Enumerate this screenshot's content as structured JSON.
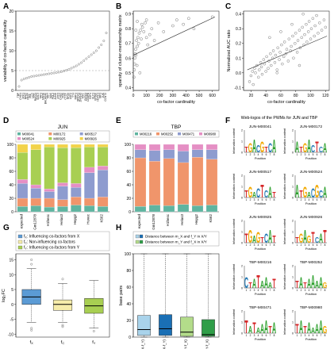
{
  "panels": {
    "A": "A",
    "B": "B",
    "C": "C",
    "D": "D",
    "E": "E",
    "F": "F",
    "G": "G",
    "H": "H"
  },
  "chart_data": [
    {
      "id": "A",
      "type": "scatter",
      "ylabel": "variability of co-factor cardinality",
      "ylim": [
        0,
        20
      ],
      "yticks": [
        0,
        5,
        10,
        15,
        20
      ],
      "threshold": 5,
      "point_labels": [
        "TBP",
        "CHD1",
        "MXI1",
        "NFE2",
        "REST",
        "PML",
        "MAZ",
        "RAD21",
        "SMC3",
        "TAF1",
        "SIN3A",
        "BHLHE40",
        "TAF7",
        "MAX",
        "POL2",
        "JUND",
        "ATF3",
        "CHD2",
        "FOS",
        "CTCF",
        "RFX5",
        "USF2",
        "YY1",
        "NRF1",
        "BRCA1",
        "ZNF143",
        "MYC",
        "GATA1",
        "CEBPB",
        "E2F4",
        "ELF1",
        "EP300",
        "HCFC1",
        "IRF1",
        "JUN",
        "CCNT2"
      ],
      "values": [
        1.0,
        2.6,
        2.9,
        3.1,
        3.3,
        3.5,
        3.6,
        3.7,
        3.8,
        3.9,
        4.0,
        4.1,
        4.2,
        4.3,
        4.4,
        4.5,
        4.6,
        4.7,
        4.9,
        5.1,
        5.3,
        5.6,
        5.9,
        6.2,
        6.6,
        7.0,
        7.5,
        8.0,
        8.5,
        9.0,
        9.5,
        10.0,
        10.8,
        11.5,
        12.5,
        14.5
      ]
    },
    {
      "id": "B",
      "type": "scatter",
      "xlabel": "co-factor cardinality",
      "ylabel": "sparsity of cluster-membership matrix",
      "xlim": [
        0,
        650
      ],
      "ylim": [
        0.38,
        0.92
      ],
      "xticks": [
        0,
        100,
        200,
        300,
        400,
        500,
        600
      ],
      "yticks": [
        0.4,
        0.5,
        0.6,
        0.7,
        0.8,
        0.9
      ],
      "points": [
        [
          5,
          0.47
        ],
        [
          8,
          0.52
        ],
        [
          10,
          0.56
        ],
        [
          12,
          0.6
        ],
        [
          15,
          0.63
        ],
        [
          18,
          0.66
        ],
        [
          20,
          0.62
        ],
        [
          25,
          0.72
        ],
        [
          28,
          0.55
        ],
        [
          30,
          0.68
        ],
        [
          35,
          0.74
        ],
        [
          40,
          0.7
        ],
        [
          45,
          0.77
        ],
        [
          50,
          0.5
        ],
        [
          55,
          0.79
        ],
        [
          60,
          0.73
        ],
        [
          70,
          0.81
        ],
        [
          80,
          0.78
        ],
        [
          90,
          0.84
        ],
        [
          100,
          0.74
        ],
        [
          110,
          0.69
        ],
        [
          125,
          0.76
        ],
        [
          140,
          0.8
        ],
        [
          160,
          0.72
        ],
        [
          190,
          0.84
        ],
        [
          230,
          0.78
        ],
        [
          300,
          0.82
        ],
        [
          330,
          0.86
        ],
        [
          380,
          0.83
        ],
        [
          420,
          0.87
        ],
        [
          460,
          0.8
        ],
        [
          600,
          0.88
        ],
        [
          30,
          0.85
        ],
        [
          20,
          0.79
        ],
        [
          65,
          0.83
        ],
        [
          100,
          0.86
        ]
      ],
      "trend": [
        [
          0,
          0.62
        ],
        [
          620,
          0.88
        ]
      ]
    },
    {
      "id": "C",
      "type": "scatter",
      "xlabel": "co-factor cardinality",
      "ylabel": "Normalized AUC ratio",
      "xlim": [
        10,
        125
      ],
      "ylim": [
        -0.12,
        0.42
      ],
      "xticks": [
        20,
        40,
        60,
        80,
        100,
        120
      ],
      "yticks": [
        -0.1,
        0.0,
        0.1,
        0.2,
        0.3,
        0.4
      ],
      "points": [
        [
          18,
          -0.06
        ],
        [
          20,
          -0.02
        ],
        [
          22,
          0.01
        ],
        [
          23,
          -0.08
        ],
        [
          25,
          0.03
        ],
        [
          26,
          0.0
        ],
        [
          28,
          0.05
        ],
        [
          30,
          -0.03
        ],
        [
          31,
          0.02
        ],
        [
          33,
          0.07
        ],
        [
          34,
          0.04
        ],
        [
          35,
          -0.01
        ],
        [
          37,
          0.09
        ],
        [
          38,
          0.06
        ],
        [
          40,
          0.01
        ],
        [
          41,
          0.11
        ],
        [
          43,
          0.03
        ],
        [
          44,
          0.08
        ],
        [
          46,
          0.13
        ],
        [
          47,
          0.05
        ],
        [
          49,
          0.1
        ],
        [
          50,
          0.15
        ],
        [
          52,
          0.07
        ],
        [
          53,
          0.12
        ],
        [
          55,
          0.02
        ],
        [
          56,
          0.17
        ],
        [
          58,
          0.09
        ],
        [
          59,
          0.14
        ],
        [
          61,
          0.19
        ],
        [
          62,
          0.06
        ],
        [
          64,
          0.11
        ],
        [
          65,
          0.21
        ],
        [
          67,
          0.13
        ],
        [
          68,
          0.16
        ],
        [
          70,
          0.08
        ],
        [
          71,
          0.23
        ],
        [
          73,
          0.15
        ],
        [
          74,
          0.18
        ],
        [
          76,
          0.25
        ],
        [
          77,
          0.1
        ],
        [
          79,
          0.2
        ],
        [
          80,
          0.27
        ],
        [
          82,
          0.14
        ],
        [
          83,
          0.22
        ],
        [
          85,
          0.29
        ],
        [
          86,
          0.17
        ],
        [
          88,
          0.24
        ],
        [
          89,
          0.31
        ],
        [
          91,
          0.19
        ],
        [
          92,
          0.26
        ],
        [
          94,
          0.33
        ],
        [
          95,
          0.21
        ],
        [
          97,
          0.28
        ],
        [
          98,
          0.35
        ],
        [
          100,
          0.23
        ],
        [
          101,
          0.3
        ],
        [
          103,
          0.37
        ],
        [
          105,
          0.25
        ],
        [
          106,
          0.32
        ],
        [
          108,
          0.39
        ],
        [
          110,
          0.27
        ],
        [
          112,
          0.34
        ],
        [
          115,
          0.29
        ],
        [
          118,
          0.36
        ],
        [
          120,
          0.31
        ],
        [
          60,
          0.28
        ],
        [
          45,
          0.24
        ],
        [
          90,
          0.4
        ],
        [
          75,
          0.33
        ],
        [
          55,
          0.0
        ],
        [
          85,
          0.05
        ]
      ],
      "trend": [
        [
          15,
          0.02
        ],
        [
          122,
          0.25
        ]
      ]
    },
    {
      "id": "D",
      "type": "bar",
      "title": "JUN",
      "stacked": true,
      "categories": [
        "expected",
        "Gm12878",
        "H1hesc",
        "Helas3",
        "Hepg2",
        "Huvec",
        "K562"
      ],
      "ylim": [
        0,
        100
      ],
      "yticks": [
        0,
        20,
        40,
        60,
        80,
        100
      ],
      "series": [
        {
          "name": "M00041",
          "color": "#5fb4a0",
          "values": [
            8,
            9,
            7,
            8,
            10,
            9,
            8
          ]
        },
        {
          "name": "M00172",
          "color": "#f0956b",
          "values": [
            12,
            11,
            13,
            10,
            12,
            11,
            14
          ]
        },
        {
          "name": "M00517",
          "color": "#8e9ccf",
          "values": [
            22,
            15,
            10,
            20,
            14,
            38,
            40
          ]
        },
        {
          "name": "M00524",
          "color": "#e58fc4",
          "values": [
            6,
            5,
            4,
            5,
            6,
            8,
            6
          ]
        },
        {
          "name": "M00925",
          "color": "#a8cf52",
          "values": [
            40,
            52,
            62,
            52,
            53,
            30,
            28
          ]
        },
        {
          "name": "M00926",
          "color": "#f2d34a",
          "values": [
            12,
            8,
            4,
            5,
            5,
            4,
            4
          ]
        }
      ]
    },
    {
      "id": "E",
      "type": "bar",
      "title": "TBP",
      "stacked": true,
      "categories": [
        "expected",
        "Gm12878",
        "H1hesc",
        "Helas3",
        "Hepg2",
        "K562"
      ],
      "ylim": [
        0,
        100
      ],
      "yticks": [
        0,
        20,
        40,
        60,
        80,
        100
      ],
      "series": [
        {
          "name": "M00216",
          "color": "#5fb4a0",
          "values": [
            8,
            10,
            9,
            11,
            9,
            10
          ]
        },
        {
          "name": "M00252",
          "color": "#f0956b",
          "values": [
            72,
            65,
            70,
            62,
            72,
            68
          ]
        },
        {
          "name": "M00471",
          "color": "#8e9ccf",
          "values": [
            12,
            16,
            13,
            17,
            11,
            14
          ]
        },
        {
          "name": "M00980",
          "color": "#e58fc4",
          "values": [
            8,
            9,
            8,
            10,
            8,
            8
          ]
        }
      ]
    },
    {
      "id": "G",
      "type": "box",
      "ylabel": "log₂FC",
      "ylim": [
        -11,
        17
      ],
      "yticks": [
        -10,
        -5,
        0,
        5,
        10,
        15
      ],
      "legend": [
        {
          "sym": "f",
          "sub": "X",
          "text": ": Influencing co-factors from X",
          "color": "#5b9bd5"
        },
        {
          "sym": "f",
          "sub": "C",
          "text": ": Non-influencing co-factors",
          "color": "#f6ecaa"
        },
        {
          "sym": "f",
          "sub": "Y",
          "text": ": Influencing co-factors from Y",
          "color": "#a8cf52"
        }
      ],
      "categories": [
        "f_X",
        "f_C",
        "f_Y"
      ],
      "boxes": [
        {
          "color": "#5b9bd5",
          "min": -6,
          "q1": 0,
          "median": 2.5,
          "q3": 5,
          "max": 12,
          "outliers": [
            -8,
            -8.7,
            13.5,
            15
          ]
        },
        {
          "color": "#f6ecaa",
          "min": -6,
          "q1": -2,
          "median": 0,
          "q3": 1.5,
          "max": 7,
          "outliers": [
            -7,
            -7.5,
            8.5
          ]
        },
        {
          "color": "#a8cf52",
          "min": -8,
          "q1": -3,
          "median": -0.5,
          "q3": 2,
          "max": 8,
          "outliers": [
            -9
          ]
        }
      ]
    },
    {
      "id": "H",
      "type": "box",
      "ylabel": "base pairs",
      "ylim": [
        0,
        100
      ],
      "yticks": [
        0,
        20,
        40,
        60,
        80,
        100
      ],
      "legend": [
        {
          "text": "Distance between m_X and f_Y in X/Y",
          "colors": [
            "#a9d3eb",
            "#1a6fb5"
          ]
        },
        {
          "text": "Distance between m_Y and f_X in X/Y",
          "colors": [
            "#b3dc8a",
            "#2f9e48"
          ]
        }
      ],
      "categories": [
        "X(m_X-f_Y)",
        "Y(m_X-f_Y)",
        "X(m_Y-f_X)",
        "Y(m_Y-f_X)"
      ],
      "boxes": [
        {
          "color": "#a9d3eb",
          "min": 0,
          "q1": 2,
          "median": 9,
          "q3": 26,
          "max": 100,
          "outliers": []
        },
        {
          "color": "#1a6fb5",
          "min": 0,
          "q1": 2,
          "median": 10,
          "q3": 27,
          "max": 100,
          "outliers": []
        },
        {
          "color": "#b3dc8a",
          "min": 0,
          "q1": 1,
          "median": 6,
          "q3": 24,
          "max": 100,
          "outliers": []
        },
        {
          "color": "#2f9e48",
          "min": 0,
          "q1": 1,
          "median": 3,
          "q3": 21,
          "max": 100,
          "outliers": []
        }
      ]
    },
    {
      "id": "F",
      "type": "sequence-logo",
      "title": "Web-logos of the PWMs for JUN and TBP",
      "ylabel": "Information content",
      "xlabel": "Position",
      "logos": [
        {
          "name": "JUN-M00041",
          "letters": [
            "T",
            "G",
            "A",
            "C",
            "G",
            "T",
            "C",
            "A"
          ]
        },
        {
          "name": "JUN-M00172",
          "letters": [
            "A",
            "T",
            "G",
            "A",
            "C",
            "T",
            "C",
            "A"
          ]
        },
        {
          "name": "JUN-M00517",
          "letters": [
            "T",
            "G",
            "A",
            "C",
            "T",
            "C",
            "A",
            "T"
          ]
        },
        {
          "name": "JUN-M00524",
          "letters": [
            "A",
            "T",
            "G",
            "A",
            "C",
            "G",
            "C",
            "A"
          ]
        },
        {
          "name": "JUN-M00925",
          "letters": [
            "T",
            "G",
            "A",
            "G",
            "T",
            "C",
            "A",
            "T"
          ]
        },
        {
          "name": "JUN-M00926",
          "letters": [
            "T",
            "G",
            "A",
            "G",
            "T",
            "C",
            "A",
            "T"
          ]
        },
        {
          "name": "TBP-M00216",
          "letters": [
            "C",
            "T",
            "A",
            "T",
            "A",
            "A",
            "A",
            "T"
          ]
        },
        {
          "name": "TBP-M00252",
          "letters": [
            "T",
            "A",
            "T",
            "A",
            "A",
            "A",
            "A",
            "G"
          ]
        },
        {
          "name": "TBP-M00471",
          "letters": [
            "T",
            "A",
            "T",
            "A",
            "A",
            "A",
            "T",
            "A"
          ]
        },
        {
          "name": "TBP-M00980",
          "letters": [
            "T",
            "A",
            "T",
            "A",
            "A",
            "A",
            "A",
            "G"
          ]
        }
      ]
    }
  ]
}
